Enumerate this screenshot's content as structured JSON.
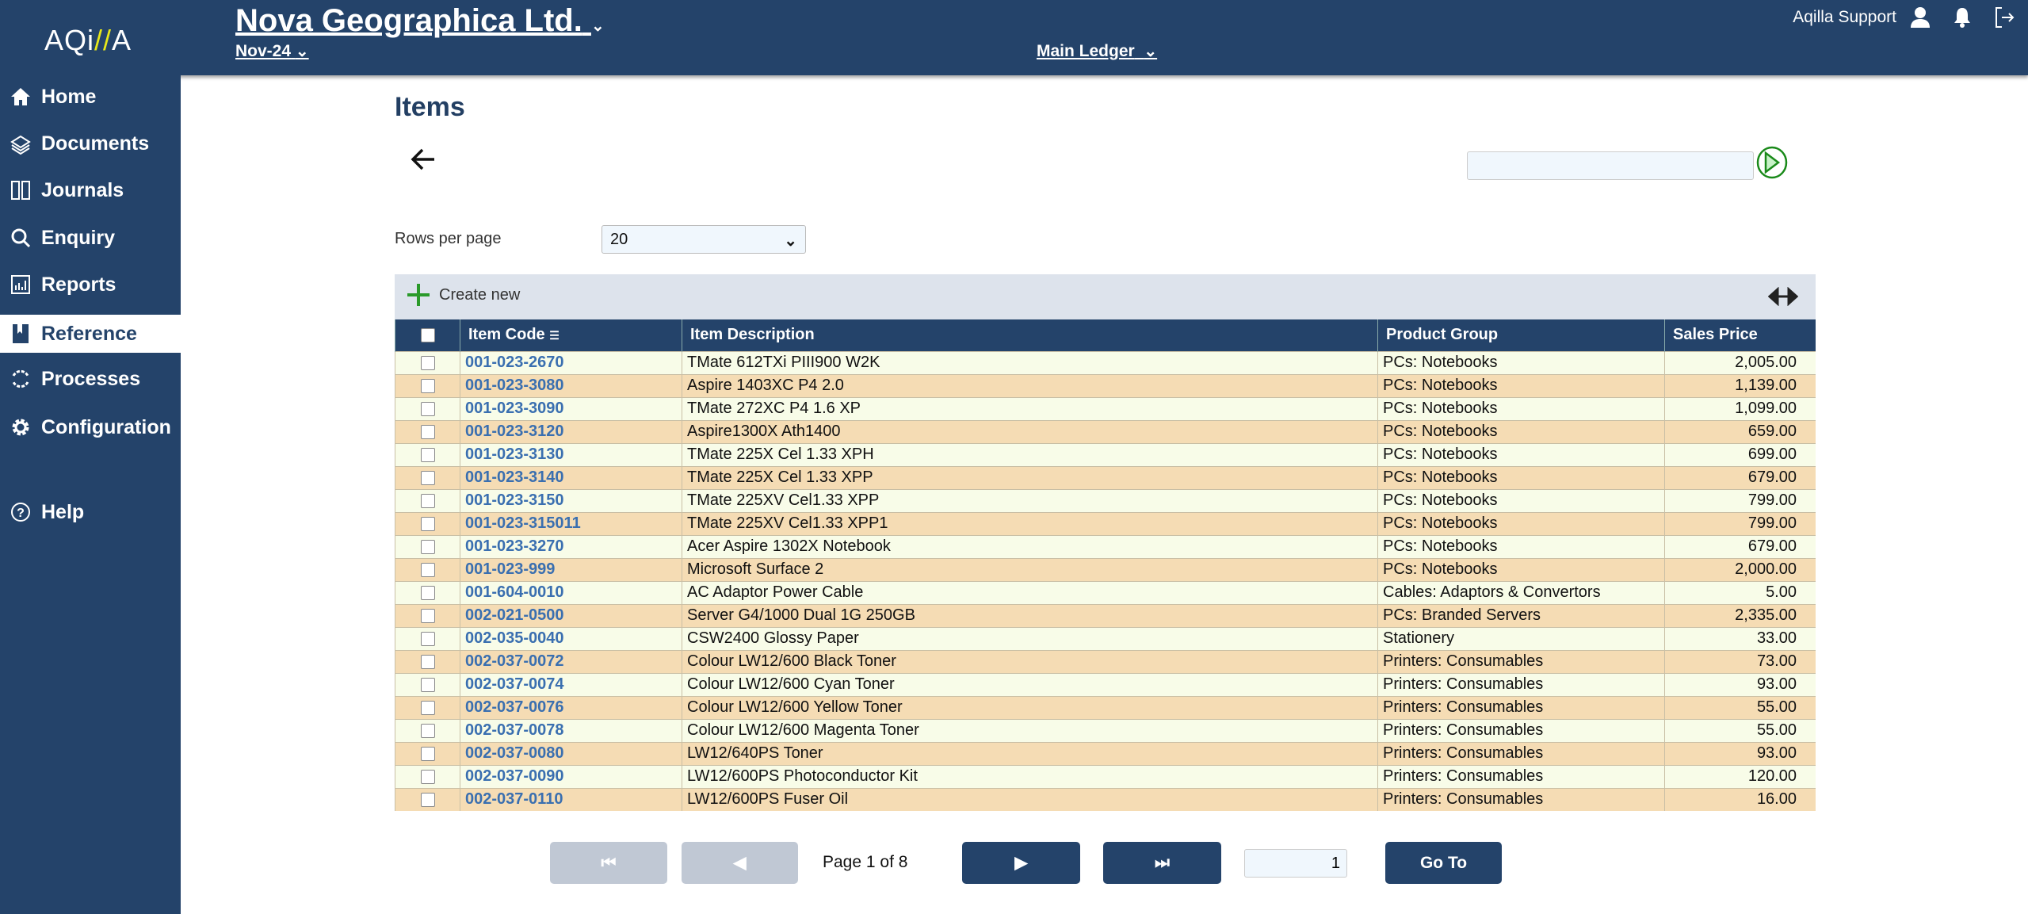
{
  "app": {
    "logo": "AQi//A",
    "company": "Nova Geographica Ltd.",
    "period": "Nov-24",
    "ledger": "Main Ledger",
    "user": "Aqilla Support"
  },
  "sidebar": {
    "items": [
      {
        "label": "Home",
        "icon": "home-icon"
      },
      {
        "label": "Documents",
        "icon": "documents-icon"
      },
      {
        "label": "Journals",
        "icon": "journals-icon"
      },
      {
        "label": "Enquiry",
        "icon": "search-icon"
      },
      {
        "label": "Reports",
        "icon": "reports-icon"
      },
      {
        "label": "Reference",
        "icon": "bookmark-icon",
        "selected": true
      },
      {
        "label": "Processes",
        "icon": "processes-icon"
      },
      {
        "label": "Configuration",
        "icon": "gear-icon"
      },
      {
        "label": "Help",
        "icon": "help-icon"
      }
    ]
  },
  "page": {
    "title": "Items",
    "search_value": "",
    "rows_per_page_label": "Rows per page",
    "rows_per_page": "20",
    "create_new": "Create new"
  },
  "table": {
    "columns": [
      "Item Code",
      "Item Description",
      "Product Group",
      "Sales Price"
    ],
    "rows": [
      [
        "001-023-2670",
        "TMate 612TXi PIII900 W2K",
        "PCs: Notebooks",
        "2,005.00"
      ],
      [
        "001-023-3080",
        "Aspire 1403XC P4 2.0",
        "PCs: Notebooks",
        "1,139.00"
      ],
      [
        "001-023-3090",
        "TMate 272XC P4 1.6 XP",
        "PCs: Notebooks",
        "1,099.00"
      ],
      [
        "001-023-3120",
        "Aspire1300X Ath1400",
        "PCs: Notebooks",
        "659.00"
      ],
      [
        "001-023-3130",
        "TMate 225X Cel 1.33 XPH",
        "PCs: Notebooks",
        "699.00"
      ],
      [
        "001-023-3140",
        "TMate 225X Cel 1.33 XPP",
        "PCs: Notebooks",
        "679.00"
      ],
      [
        "001-023-3150",
        "TMate 225XV Cel1.33 XPP",
        "PCs: Notebooks",
        "799.00"
      ],
      [
        "001-023-315011",
        "TMate 225XV Cel1.33 XPP1",
        "PCs: Notebooks",
        "799.00"
      ],
      [
        "001-023-3270",
        "Acer Aspire 1302X Notebook",
        "PCs: Notebooks",
        "679.00"
      ],
      [
        "001-023-999",
        "Microsoft Surface 2",
        "PCs: Notebooks",
        "2,000.00"
      ],
      [
        "001-604-0010",
        "AC Adaptor Power Cable",
        "Cables: Adaptors & Convertors",
        "5.00"
      ],
      [
        "002-021-0500",
        "Server G4/1000 Dual 1G 250GB",
        "PCs: Branded Servers",
        "2,335.00"
      ],
      [
        "002-035-0040",
        "CSW2400 Glossy Paper",
        "Stationery",
        "33.00"
      ],
      [
        "002-037-0072",
        "Colour LW12/600 Black Toner",
        "Printers: Consumables",
        "73.00"
      ],
      [
        "002-037-0074",
        "Colour LW12/600 Cyan Toner",
        "Printers: Consumables",
        "93.00"
      ],
      [
        "002-037-0076",
        "Colour LW12/600 Yellow Toner",
        "Printers: Consumables",
        "55.00"
      ],
      [
        "002-037-0078",
        "Colour LW12/600 Magenta Toner",
        "Printers: Consumables",
        "55.00"
      ],
      [
        "002-037-0080",
        "LW12/640PS Toner",
        "Printers: Consumables",
        "93.00"
      ],
      [
        "002-037-0090",
        "LW12/600PS Photoconductor Kit",
        "Printers: Consumables",
        "120.00"
      ],
      [
        "002-037-0110",
        "LW12/600PS Fuser Oil",
        "Printers: Consumables",
        "16.00"
      ]
    ]
  },
  "pagination": {
    "page_text": "Page 1 of 8",
    "goto_value": "1",
    "goto_label": "Go To"
  },
  "colors": {
    "navy": "#24436a",
    "row_odd": "#f8fce8",
    "row_even": "#f5dcb4",
    "link": "#3a6fb0",
    "accent_green": "#2a9a2a"
  }
}
